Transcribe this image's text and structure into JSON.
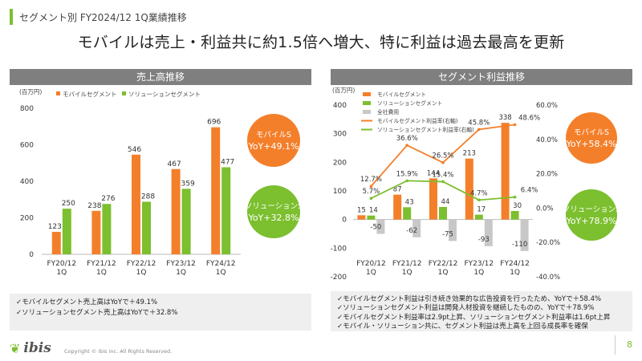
{
  "header": {
    "section_title": "セグメント別 FY2024/12 1Q業績推移"
  },
  "headline": "モバイルは売上・利益共に約1.5倍へ増大、特に利益は過去最高を更新",
  "colors": {
    "mobile": "#f47f2a",
    "solution": "#7cbf2f",
    "company": "#c8c8c8",
    "accent": "#7cbf2f"
  },
  "chart_data": [
    {
      "type": "bar",
      "title": "売上高推移",
      "unit_label": "(百万円)",
      "categories": [
        "FY20/12\n1Q",
        "FY21/12\n1Q",
        "FY22/12\n1Q",
        "FY23/12\n1Q",
        "FY24/12\n1Q"
      ],
      "series": [
        {
          "name": "モバイルセグメント",
          "values": [
            123,
            238,
            546,
            467,
            696
          ]
        },
        {
          "name": "ソリューションセグメント",
          "values": [
            250,
            276,
            288,
            359,
            477
          ]
        }
      ],
      "ylim": [
        0,
        800
      ],
      "yticks": [
        0,
        200,
        400,
        600,
        800
      ],
      "legend": "top",
      "callouts": [
        {
          "label": "モバイルS",
          "value": "YoY+49.1%"
        },
        {
          "label": "ソリューションS",
          "value": "YoY+32.8%"
        }
      ]
    },
    {
      "type": "bar",
      "title": "セグメント利益推移",
      "unit_label": "(百万円)",
      "categories": [
        "FY20/12\n1Q",
        "FY21/12\n1Q",
        "FY22/12\n1Q",
        "FY23/12\n1Q",
        "FY24/12\n1Q"
      ],
      "series": [
        {
          "name": "モバイルセグメント",
          "values": [
            15,
            87,
            144,
            213,
            338
          ]
        },
        {
          "name": "ソリューションセグメント",
          "values": [
            14,
            43,
            44,
            17,
            30
          ]
        },
        {
          "name": "全社費用",
          "values": [
            -50,
            -62,
            -75,
            -93,
            -110
          ]
        },
        {
          "name": "モバイルセグメント利益率(右軸)",
          "type": "line",
          "values": [
            12.7,
            36.6,
            26.5,
            45.8,
            48.6
          ],
          "labels": [
            "12.7%",
            "36.6%",
            "26.5%",
            "45.8%",
            "48.6%"
          ]
        },
        {
          "name": "ソリューションセグメント利益率(右軸)",
          "type": "line",
          "values": [
            5.7,
            15.9,
            15.4,
            4.7,
            6.4
          ],
          "labels": [
            "5.7%",
            "15.9%",
            "15.4%",
            "4.7%",
            "6.4%"
          ]
        }
      ],
      "ylim": [
        -200,
        400
      ],
      "yticks": [
        -200,
        -100,
        0,
        100,
        200,
        300,
        400
      ],
      "y2lim": [
        -40,
        60
      ],
      "y2ticks": [
        "-40.0%",
        "-20.0%",
        "0.0%",
        "20.0%",
        "40.0%",
        "60.0%"
      ],
      "legend": "top-left",
      "callouts": [
        {
          "label": "モバイルS",
          "value": "YoY+58.4%"
        },
        {
          "label": "ソリューションS",
          "value": "YoY+78.9%"
        }
      ]
    }
  ],
  "left_summary": [
    "✓モバイルセグメント売上高はYoYで＋49.1%",
    "✓ソリューションセグメント売上高はYoYで＋32.8%"
  ],
  "right_summary": [
    "✓モバイルセグメント利益は引き続き効果的な広告投資を行ったため、YoYで＋58.4%",
    "✓ソリューションセグメント利益は開発人材投資を継続したものの、YoYで＋78.9%",
    "✓モバイルセグメント利益率は2.9pt上昇、ソリューションセグメント利益率は1.6pt上昇",
    "✓モバイル・ソリューション共に、セグメント利益は売上高を上回る成長率を確保"
  ],
  "footer": {
    "logo": "ibis",
    "copyright": "Copyright © ibis inc. All Rights Reserved.",
    "page": "8"
  }
}
